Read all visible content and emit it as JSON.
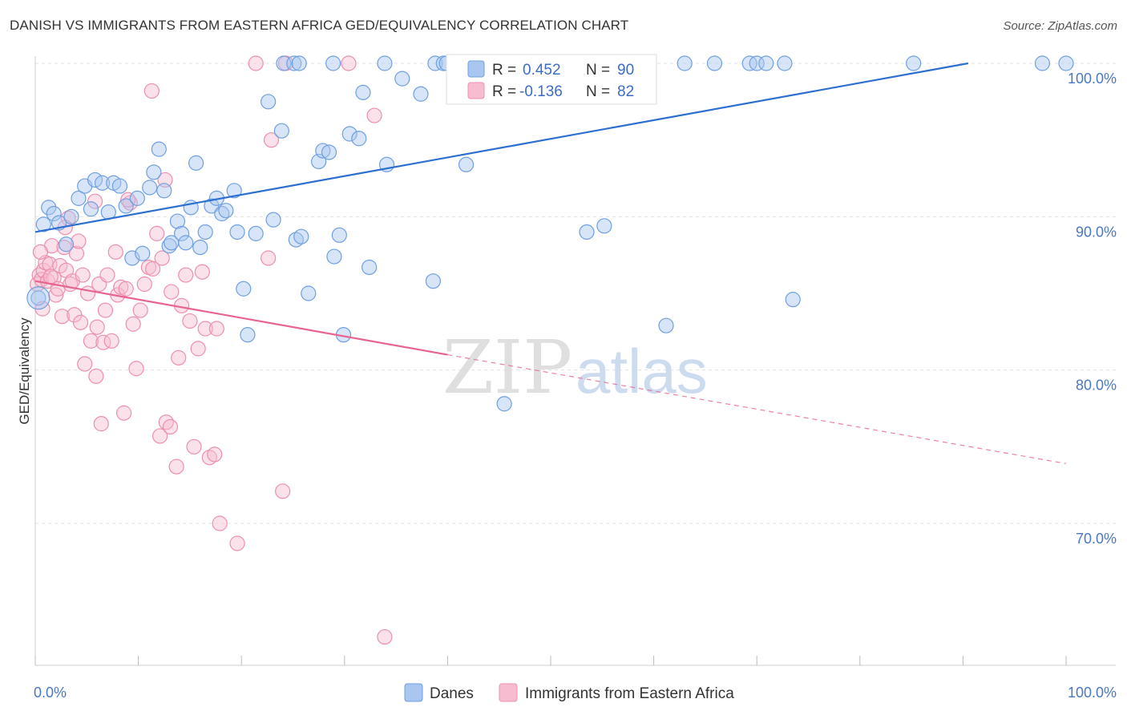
{
  "title": "DANISH VS IMMIGRANTS FROM EASTERN AFRICA GED/EQUIVALENCY CORRELATION CHART",
  "source": "Source: ZipAtlas.com",
  "watermark": {
    "zip": "ZIP",
    "atlas": "atlas"
  },
  "stats": {
    "r_label": "R =",
    "n_label": "N =",
    "danes": {
      "r": "0.452",
      "n": "90"
    },
    "immigrants": {
      "r": "-0.136",
      "n": "82"
    }
  },
  "legend": {
    "danes": "Danes",
    "immigrants": "Immigrants from Eastern Africa"
  },
  "colors": {
    "danes": "#6f9fe0",
    "danes_fill": "#a9c6f0",
    "danes_line": "#2d6fd0",
    "immigrants": "#ec8fb0",
    "immigrants_fill": "#f7bcd0",
    "immigrants_line": "#e8648e"
  },
  "chart_data": {
    "type": "scatter",
    "title": "DANISH VS IMMIGRANTS FROM EASTERN AFRICA GED/EQUIVALENCY CORRELATION CHART",
    "xlabel": "",
    "ylabel": "GED/Equivalency",
    "xlim": [
      0,
      100
    ],
    "ylim": [
      62,
      101.5
    ],
    "x_tick_labels": [
      "0.0%",
      "100.0%"
    ],
    "y_ticks": [
      70,
      80,
      90,
      100
    ],
    "y_tick_labels": [
      "70.0%",
      "80.0%",
      "90.0%",
      "100.0%"
    ],
    "grid": true,
    "legend_position": "bottom",
    "series": [
      {
        "name": "Danes",
        "trend": {
          "x": [
            0,
            90.5
          ],
          "y": [
            89.0,
            100.0
          ]
        },
        "points": [
          [
            0.8,
            89.5
          ],
          [
            1.3,
            90.6
          ],
          [
            1.8,
            90.2
          ],
          [
            2.3,
            89.6
          ],
          [
            3.0,
            88.2
          ],
          [
            3.5,
            90.0
          ],
          [
            4.2,
            91.2
          ],
          [
            4.8,
            92.0
          ],
          [
            5.4,
            90.5
          ],
          [
            5.8,
            92.4
          ],
          [
            6.5,
            92.2
          ],
          [
            7.1,
            90.3
          ],
          [
            7.6,
            92.2
          ],
          [
            8.2,
            92.0
          ],
          [
            8.8,
            90.7
          ],
          [
            9.4,
            87.3
          ],
          [
            9.9,
            91.2
          ],
          [
            10.4,
            87.6
          ],
          [
            11.1,
            91.9
          ],
          [
            11.5,
            92.9
          ],
          [
            12.0,
            94.4
          ],
          [
            12.5,
            91.7
          ],
          [
            13.0,
            88.1
          ],
          [
            13.2,
            88.3
          ],
          [
            13.8,
            89.7
          ],
          [
            14.2,
            88.9
          ],
          [
            14.6,
            88.3
          ],
          [
            15.1,
            90.6
          ],
          [
            15.6,
            93.5
          ],
          [
            16.0,
            88.0
          ],
          [
            16.5,
            89.0
          ],
          [
            17.1,
            90.7
          ],
          [
            17.6,
            91.2
          ],
          [
            18.1,
            90.2
          ],
          [
            18.5,
            90.4
          ],
          [
            19.3,
            91.7
          ],
          [
            19.6,
            89.0
          ],
          [
            20.2,
            85.3
          ],
          [
            20.6,
            82.3
          ],
          [
            21.4,
            88.9
          ],
          [
            22.6,
            97.5
          ],
          [
            23.1,
            89.8
          ],
          [
            23.9,
            95.6
          ],
          [
            25.3,
            88.5
          ],
          [
            25.8,
            88.7
          ],
          [
            26.5,
            85.0
          ],
          [
            27.5,
            93.6
          ],
          [
            27.9,
            94.3
          ],
          [
            28.5,
            94.2
          ],
          [
            28.9,
            100.0
          ],
          [
            24.1,
            100.0
          ],
          [
            25.1,
            100.0
          ],
          [
            25.6,
            100.0
          ],
          [
            29.0,
            87.4
          ],
          [
            29.5,
            88.8
          ],
          [
            29.9,
            82.3
          ],
          [
            30.5,
            95.4
          ],
          [
            31.4,
            95.1
          ],
          [
            31.8,
            98.1
          ],
          [
            32.4,
            86.7
          ],
          [
            34.1,
            93.4
          ],
          [
            33.9,
            100.0
          ],
          [
            35.6,
            99.0
          ],
          [
            37.4,
            98.0
          ],
          [
            38.6,
            85.8
          ],
          [
            38.8,
            100.0
          ],
          [
            39.6,
            100.0
          ],
          [
            39.9,
            100.0
          ],
          [
            41.3,
            100.0
          ],
          [
            41.8,
            93.4
          ],
          [
            45.5,
            77.8
          ],
          [
            46.9,
            100.0
          ],
          [
            47.6,
            100.0
          ],
          [
            47.9,
            100.0
          ],
          [
            49.5,
            100.0
          ],
          [
            53.5,
            89.0
          ],
          [
            49.6,
            100.0
          ],
          [
            55.2,
            89.4
          ],
          [
            61.2,
            82.9
          ],
          [
            63.0,
            100.0
          ],
          [
            65.9,
            100.0
          ],
          [
            69.3,
            100.0
          ],
          [
            70.0,
            100.0
          ],
          [
            70.9,
            100.0
          ],
          [
            72.7,
            100.0
          ],
          [
            73.5,
            84.6
          ],
          [
            85.2,
            100.0
          ],
          [
            97.7,
            100.0
          ],
          [
            100.0,
            100.0
          ],
          [
            0.3,
            84.7
          ]
        ]
      },
      {
        "name": "Immigrants from Eastern Africa",
        "trend": {
          "x": [
            0,
            40
          ],
          "y": [
            85.8,
            81.0
          ]
        },
        "trend_dashed": {
          "x": [
            40,
            100
          ],
          "y": [
            81.0,
            73.9
          ]
        },
        "points": [
          [
            0.2,
            85.6
          ],
          [
            0.4,
            86.2
          ],
          [
            0.6,
            85.9
          ],
          [
            0.8,
            86.5
          ],
          [
            1.0,
            87.0
          ],
          [
            1.2,
            85.8
          ],
          [
            1.4,
            86.9
          ],
          [
            1.6,
            88.1
          ],
          [
            1.8,
            86.0
          ],
          [
            2.0,
            84.9
          ],
          [
            2.2,
            85.3
          ],
          [
            2.4,
            86.8
          ],
          [
            2.6,
            83.5
          ],
          [
            2.8,
            88.0
          ],
          [
            3.0,
            86.5
          ],
          [
            3.2,
            89.9
          ],
          [
            3.4,
            85.6
          ],
          [
            3.6,
            85.8
          ],
          [
            3.8,
            83.6
          ],
          [
            4.0,
            87.6
          ],
          [
            4.2,
            88.4
          ],
          [
            4.4,
            83.1
          ],
          [
            4.6,
            86.2
          ],
          [
            4.8,
            80.4
          ],
          [
            5.1,
            85.0
          ],
          [
            5.4,
            81.9
          ],
          [
            5.8,
            91.0
          ],
          [
            6.0,
            82.8
          ],
          [
            6.2,
            85.6
          ],
          [
            6.4,
            76.5
          ],
          [
            6.6,
            81.8
          ],
          [
            6.8,
            83.9
          ],
          [
            7.0,
            86.2
          ],
          [
            7.4,
            81.9
          ],
          [
            7.8,
            87.7
          ],
          [
            8.0,
            84.9
          ],
          [
            8.3,
            85.4
          ],
          [
            8.6,
            77.2
          ],
          [
            8.8,
            85.3
          ],
          [
            9.2,
            90.9
          ],
          [
            9.5,
            83.0
          ],
          [
            9.8,
            80.1
          ],
          [
            10.2,
            83.9
          ],
          [
            10.6,
            85.6
          ],
          [
            11.0,
            86.7
          ],
          [
            11.4,
            86.6
          ],
          [
            11.8,
            88.9
          ],
          [
            12.1,
            75.7
          ],
          [
            12.3,
            87.3
          ],
          [
            12.7,
            76.6
          ],
          [
            13.2,
            85.1
          ],
          [
            13.7,
            73.7
          ],
          [
            13.9,
            80.8
          ],
          [
            14.2,
            84.2
          ],
          [
            14.6,
            86.2
          ],
          [
            15.0,
            83.2
          ],
          [
            15.4,
            75.0
          ],
          [
            15.8,
            81.4
          ],
          [
            16.2,
            86.4
          ],
          [
            16.5,
            82.7
          ],
          [
            16.9,
            74.3
          ],
          [
            17.4,
            74.5
          ],
          [
            17.9,
            70.0
          ],
          [
            19.6,
            68.7
          ],
          [
            22.6,
            87.3
          ],
          [
            22.9,
            95.0
          ],
          [
            24.0,
            72.1
          ],
          [
            32.9,
            96.6
          ],
          [
            33.9,
            62.6
          ],
          [
            12.6,
            92.4
          ],
          [
            11.3,
            98.2
          ],
          [
            17.6,
            82.7
          ],
          [
            21.4,
            100.0
          ],
          [
            24.3,
            100.0
          ],
          [
            30.4,
            100.0
          ],
          [
            13.1,
            76.3
          ],
          [
            5.9,
            79.6
          ],
          [
            0.5,
            87.7
          ],
          [
            0.7,
            84.0
          ],
          [
            1.5,
            86.1
          ],
          [
            2.9,
            89.3
          ],
          [
            9.0,
            91.1
          ]
        ]
      }
    ]
  }
}
